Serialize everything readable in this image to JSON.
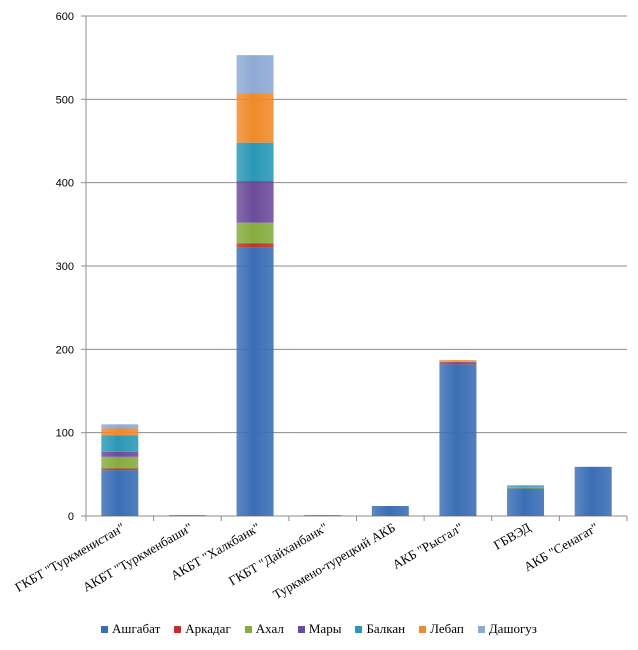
{
  "chart_data": {
    "type": "bar",
    "stacked": true,
    "title": "",
    "xlabel": "",
    "ylabel": "",
    "ylim": [
      0,
      600
    ],
    "yticks": [
      0,
      100,
      200,
      300,
      400,
      500,
      600
    ],
    "grid": true,
    "legend_position": "bottom",
    "categories": [
      "ГКБТ \"Туркменистан\"",
      "АКБТ \"Туркменбаши\"",
      "АКБТ \"Халкбанк\"",
      "ГКБТ \"Дайханбанк\"",
      "Туркмено-турецкий АКБ",
      "АКБ \"Рысгал\"",
      "ГБВЭД",
      "АКБ \"Сенагат\""
    ],
    "series": [
      {
        "name": "Ашгабат",
        "color": "#3A6EB5",
        "values": [
          55,
          1,
          322,
          1,
          12,
          182,
          33,
          59
        ]
      },
      {
        "name": "Аркадаг",
        "color": "#C0312B",
        "values": [
          2,
          0,
          5,
          0,
          0,
          2,
          0,
          0
        ]
      },
      {
        "name": "Ахал",
        "color": "#86AC3F",
        "values": [
          14,
          0,
          25,
          0,
          0,
          0,
          2,
          0
        ]
      },
      {
        "name": "Мары",
        "color": "#6B4C9A",
        "values": [
          6,
          0,
          50,
          0,
          0,
          1,
          0,
          0
        ]
      },
      {
        "name": "Балкан",
        "color": "#2B98B5",
        "values": [
          20,
          0,
          46,
          0,
          0,
          0,
          1,
          0
        ]
      },
      {
        "name": "Лебап",
        "color": "#F08A2B",
        "values": [
          8,
          0,
          59,
          0,
          0,
          2,
          1,
          0
        ]
      },
      {
        "name": "Дашогуз",
        "color": "#8FA9D6",
        "values": [
          5,
          0,
          46,
          0,
          0,
          0,
          0,
          0
        ]
      }
    ]
  }
}
